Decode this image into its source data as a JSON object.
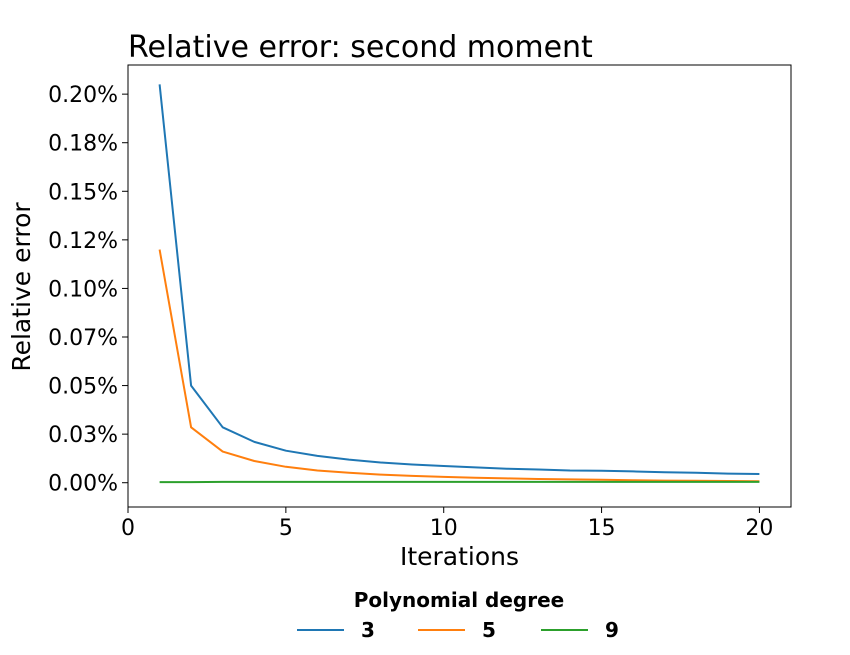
{
  "chart_data": {
    "type": "line",
    "title": "Relative error: second moment",
    "xlabel": "Iterations",
    "ylabel": "Relative error",
    "xlim": [
      0,
      21
    ],
    "ylim": [
      -1.25e-05,
      0.000215
    ],
    "xticks": [
      0,
      5,
      10,
      15,
      20
    ],
    "xtick_labels": [
      "0",
      "5",
      "10",
      "15",
      "20"
    ],
    "yticks": [
      0,
      2.5e-05,
      5e-05,
      7.5e-05,
      0.0001,
      0.000125,
      0.00015,
      0.000175,
      0.0002
    ],
    "ytick_labels": [
      "0.00%",
      "0.03%",
      "0.05%",
      "0.07%",
      "0.10%",
      "0.12%",
      "0.15%",
      "0.18%",
      "0.20%"
    ],
    "grid": false,
    "legend": {
      "title": "Polynomial degree",
      "placement": "bottom-center, below plot"
    },
    "x": [
      1,
      2,
      3,
      4,
      5,
      6,
      7,
      8,
      9,
      10,
      11,
      12,
      13,
      14,
      15,
      16,
      17,
      18,
      19,
      20
    ],
    "series": [
      {
        "name": "3",
        "color": "#1f77b4",
        "values": [
          0.000205,
          5e-05,
          2.85e-05,
          2.1e-05,
          1.65e-05,
          1.38e-05,
          1.19e-05,
          1.04e-05,
          9.4e-06,
          8.6e-06,
          7.9e-06,
          7.2e-06,
          6.8e-06,
          6.3e-06,
          6.2e-06,
          5.8e-06,
          5.4e-06,
          5.1e-06,
          4.7e-06,
          4.5e-06
        ]
      },
      {
        "name": "5",
        "color": "#ff7f0e",
        "values": [
          0.00012,
          2.85e-05,
          1.6e-05,
          1.12e-05,
          8.2e-06,
          6.3e-06,
          5.1e-06,
          4.2e-06,
          3.5e-06,
          3e-06,
          2.6e-06,
          2.2e-06,
          1.9e-06,
          1.7e-06,
          1.5e-06,
          1.3e-06,
          1.1e-06,
          1e-06,
          9e-07,
          8e-07
        ]
      },
      {
        "name": "9",
        "color": "#2ca02c",
        "values": [
          3e-07,
          3e-07,
          4e-07,
          4e-07,
          4e-07,
          4e-07,
          4e-07,
          4e-07,
          4e-07,
          4e-07,
          4e-07,
          4e-07,
          4e-07,
          4e-07,
          4e-07,
          4e-07,
          4e-07,
          4e-07,
          4e-07,
          4e-07
        ]
      }
    ]
  }
}
